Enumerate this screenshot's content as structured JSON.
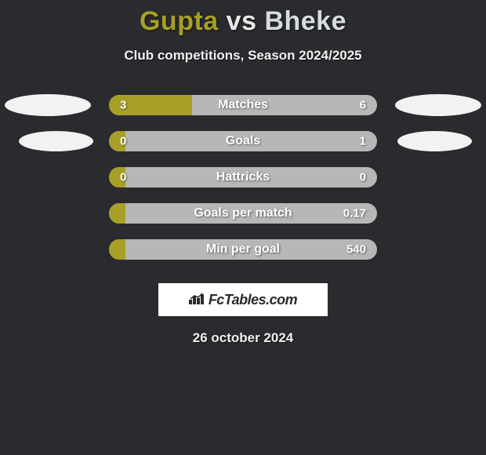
{
  "header": {
    "player1": "Gupta",
    "vs": "vs",
    "player2": "Bheke",
    "subtitle": "Club competitions, Season 2024/2025",
    "player1_color": "#a79f27",
    "player2_color": "#d8dce0"
  },
  "chart": {
    "type": "bar",
    "bar_background": "#b7b7b7",
    "fill_color": "#a79f27",
    "text_color": "#ffffff",
    "rows": [
      {
        "label": "Matches",
        "left_val": "3",
        "right_val": "6",
        "fill_pct": 31,
        "show_ovals": true,
        "oval_small": false
      },
      {
        "label": "Goals",
        "left_val": "0",
        "right_val": "1",
        "fill_pct": 6,
        "show_ovals": true,
        "oval_small": true
      },
      {
        "label": "Hattricks",
        "left_val": "0",
        "right_val": "0",
        "fill_pct": 6,
        "show_ovals": false
      },
      {
        "label": "Goals per match",
        "left_val": "",
        "right_val": "0.17",
        "fill_pct": 6,
        "show_ovals": false
      },
      {
        "label": "Min per goal",
        "left_val": "",
        "right_val": "540",
        "fill_pct": 6,
        "show_ovals": false
      }
    ]
  },
  "footer": {
    "logo_text": "FcTables.com",
    "date": "26 october 2024"
  },
  "colors": {
    "background": "#2a2b2e",
    "oval": "#f2f2f2",
    "logo_bg": "#ffffff",
    "logo_fg": "#2b2b2b"
  }
}
